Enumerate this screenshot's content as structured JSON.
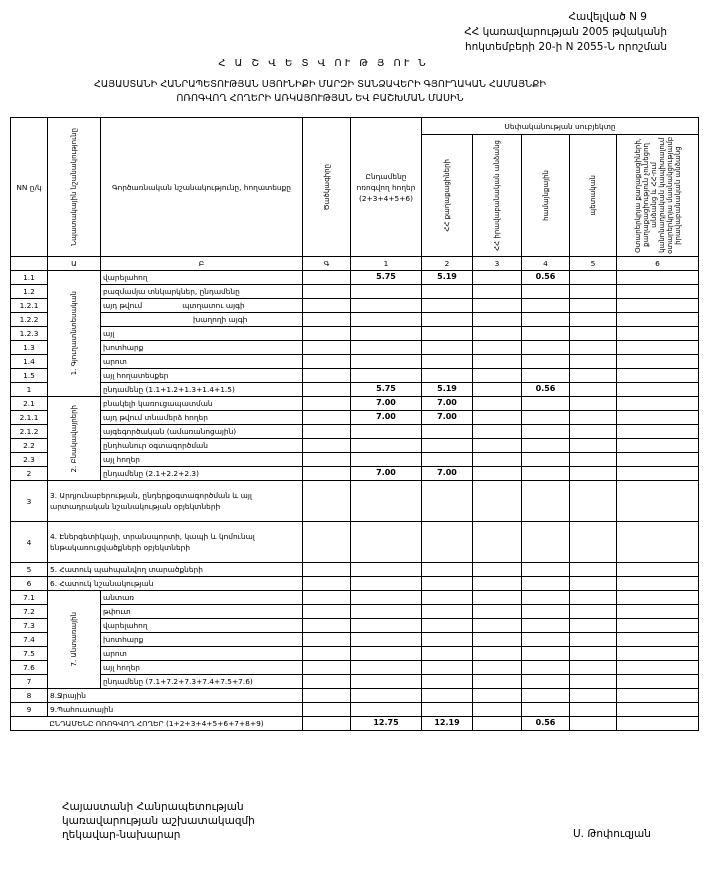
{
  "annex": [
    "Հավելված N 9",
    "ՀՀ կառավարության 2005 թվականի",
    "հոկտեմբերի 20-ի N 2055-Ն որոշման"
  ],
  "report_title": "Հ Ա Շ Վ Ե Տ Վ ՈՒ Թ Յ ՈՒ Ն",
  "subject": [
    "ՀԱՅԱՍՏԱՆԻ ՀԱՆՐԱՊԵՏՈՒԹՅԱՆ ՍՅՈՒՆԻՔԻ ՄԱՐԶԻ ՏԱՆՁԱՎԵՐԻ ԳՅՈՒՂԱԿԱՆ ՀԱՄԱՅՆՔԻ",
    "ՈՌՈԳՎՈՂ ՀՈՂԵՐԻ ԱՌԿԱՅՈՒԹՅԱՆ ԵՎ ԲԱՇԽՄԱՆ ՄԱՍԻՆ"
  ],
  "headers": {
    "no": "NN ը/կ",
    "purpose": "Նպատակային նշանակությունը",
    "function": "Գործառնական նշանակությունը, հողատեսքը",
    "code": "Ծածկագիրը",
    "total": "Ընդամենը ոռոգվող հողեր (2+3+4+5+6)",
    "owner_group": "Սեփականության սուբյեկտը",
    "owners": [
      "ՀՀ քաղաքացիների",
      "ՀՀ իրավաբանական անձանց",
      "համայնքային",
      "պետական",
      "Օտարերկրյա քաղաքացիների, քաղաքացիություն չունեցող անձանց և ՀՀ-ում կանոնադրական կապիտալում օտարերկրյա մասնակցությամբ իրավաբանական անձանց"
    ],
    "letters": [
      "Ա",
      "Բ",
      "Գ",
      "1",
      "2",
      "3",
      "4",
      "5",
      "6"
    ]
  },
  "groups": {
    "g1": "1. Գյուղատնտեսական",
    "g2": "2. Բնակավայրերի",
    "g7": "7. Անտառային"
  },
  "rows": [
    {
      "no": "1.1",
      "label": "վարելահող",
      "group": "g1",
      "values": [
        "5.75",
        "5.19",
        "",
        "0.56",
        "",
        ""
      ]
    },
    {
      "no": "1.2",
      "label": "բազմամյա տնկարկներ, ընդամենը",
      "group": "g1",
      "values": [
        "",
        "",
        "",
        "",
        "",
        ""
      ]
    },
    {
      "no": "1.2.1",
      "label": "այդ թվում",
      "sub": "պտղատու այգի",
      "group": "g1",
      "values": [
        "",
        "",
        "",
        "",
        "",
        ""
      ]
    },
    {
      "no": "1.2.2",
      "label": "",
      "sub": "խաղողի այգի",
      "group": "g1",
      "values": [
        "",
        "",
        "",
        "",
        "",
        ""
      ]
    },
    {
      "no": "1.2.3",
      "label": "այլ",
      "group": "g1",
      "values": [
        "",
        "",
        "",
        "",
        "",
        ""
      ]
    },
    {
      "no": "1.3",
      "label": "խոտհարք",
      "group": "g1",
      "values": [
        "",
        "",
        "",
        "",
        "",
        ""
      ]
    },
    {
      "no": "1.4",
      "label": "արոտ",
      "group": "g1",
      "values": [
        "",
        "",
        "",
        "",
        "",
        ""
      ]
    },
    {
      "no": "1.5",
      "label": "այլ հողատեսքեր",
      "group": "g1",
      "values": [
        "",
        "",
        "",
        "",
        "",
        ""
      ]
    },
    {
      "no": "1",
      "label": "ընդամենը (1.1+1.2+1.3+1.4+1.5)",
      "group": "g1",
      "values": [
        "5.75",
        "5.19",
        "",
        "0.56",
        "",
        ""
      ]
    },
    {
      "no": "2.1",
      "label": "բնակելի կառուցապատման",
      "group": "g2",
      "values": [
        "7.00",
        "7.00",
        "",
        "",
        "",
        ""
      ]
    },
    {
      "no": "2.1.1",
      "label": "այդ թվում տնամերձ հողեր",
      "group": "g2",
      "values": [
        "7.00",
        "7.00",
        "",
        "",
        "",
        ""
      ]
    },
    {
      "no": "2.1.2",
      "label": "այգեգործական (ամառանոցային)",
      "group": "g2",
      "values": [
        "",
        "",
        "",
        "",
        "",
        ""
      ]
    },
    {
      "no": "2.2",
      "label": "ընդհանուր օգտագործման",
      "group": "g2",
      "values": [
        "",
        "",
        "",
        "",
        "",
        ""
      ]
    },
    {
      "no": "2.3",
      "label": "այլ հողեր",
      "group": "g2",
      "values": [
        "",
        "",
        "",
        "",
        "",
        ""
      ]
    },
    {
      "no": "2",
      "label": "ընդամենը (2.1+2.2+2.3)",
      "group": "g2",
      "values": [
        "7.00",
        "7.00",
        "",
        "",
        "",
        ""
      ]
    },
    {
      "no": "3",
      "label": "3. Արդյունաբերության, ընդերքօգտագործման և այլ արտադրական նշանակության օբյեկտների",
      "tall": true,
      "values": [
        "",
        "",
        "",
        "",
        "",
        ""
      ]
    },
    {
      "no": "4",
      "label": "4. Էներգետիկայի, տրանսպորտի, կապի և կոմունալ ենթակառուցվածքների օբյեկտների",
      "tall": true,
      "values": [
        "",
        "",
        "",
        "",
        "",
        ""
      ]
    },
    {
      "no": "5",
      "label": "5. Հատուկ պահպանվող տարածքների",
      "values": [
        "",
        "",
        "",
        "",
        "",
        ""
      ]
    },
    {
      "no": "6",
      "label": "6. Հատուկ նշանակության",
      "values": [
        "",
        "",
        "",
        "",
        "",
        ""
      ]
    },
    {
      "no": "7.1",
      "label": "անտառ",
      "group": "g7",
      "values": [
        "",
        "",
        "",
        "",
        "",
        ""
      ]
    },
    {
      "no": "7.2",
      "label": "թփուտ",
      "group": "g7",
      "values": [
        "",
        "",
        "",
        "",
        "",
        ""
      ]
    },
    {
      "no": "7.3",
      "label": "վարելահող",
      "group": "g7",
      "values": [
        "",
        "",
        "",
        "",
        "",
        ""
      ]
    },
    {
      "no": "7.4",
      "label": "խոտհարք",
      "group": "g7",
      "values": [
        "",
        "",
        "",
        "",
        "",
        ""
      ]
    },
    {
      "no": "7.5",
      "label": "արոտ",
      "group": "g7",
      "values": [
        "",
        "",
        "",
        "",
        "",
        ""
      ]
    },
    {
      "no": "7.6",
      "label": "այլ հողեր",
      "group": "g7",
      "values": [
        "",
        "",
        "",
        "",
        "",
        ""
      ]
    },
    {
      "no": "7",
      "label": "ընդամենը (7.1+7.2+7.3+7.4+7.5+7.6)",
      "group": "g7",
      "values": [
        "",
        "",
        "",
        "",
        "",
        ""
      ]
    },
    {
      "no": "8",
      "label": "8.Ջրային",
      "values": [
        "",
        "",
        "",
        "",
        "",
        ""
      ]
    },
    {
      "no": "9",
      "label": "9.Պահուստային",
      "values": [
        "",
        "",
        "",
        "",
        "",
        ""
      ]
    }
  ],
  "total_row": {
    "label": "ԸՆԴԱՄԵՆԸ ՈՌՈԳՎՈՂ ՀՈՂԵՐ (1+2+3+4+5+6+7+8+9)",
    "values": [
      "12.75",
      "12.19",
      "",
      "0.56",
      "",
      ""
    ]
  },
  "footer": {
    "position": [
      "Հայաստանի Հանրապետության",
      "կառավարության աշխատակազմի",
      "ղեկավար-նախարար"
    ],
    "signatory": "Ս. Թոփուզյան"
  }
}
